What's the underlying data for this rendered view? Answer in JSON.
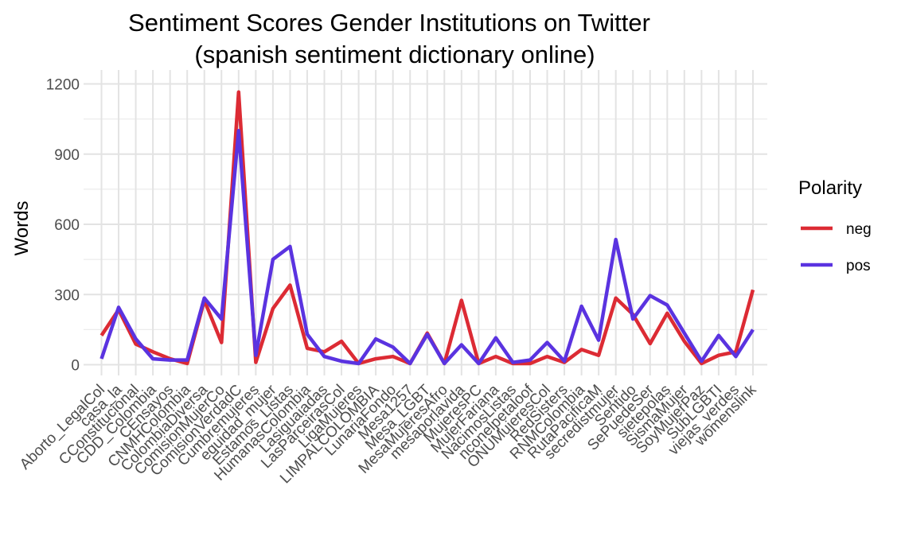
{
  "chart_data": {
    "type": "line",
    "title": "Sentiment Scores Gender Institutions on Twitter",
    "subtitle": "(spanish sentiment dictionary online)",
    "xlabel": "",
    "ylabel": "Words",
    "ylim": [
      0,
      1200
    ],
    "yticks": [
      0,
      300,
      600,
      900,
      1200
    ],
    "grid": true,
    "legend": {
      "title": "Polarity",
      "position": "right"
    },
    "categories": [
      "Aborto_LegalCol",
      "casa_la",
      "CConstitucional",
      "CDD_Colombia",
      "CEnsayos",
      "CNMHColombia",
      "ColombiaDiversa",
      "ComisionMujerCo",
      "ComisionVerdadC",
      "Cumbremujeres",
      "equidad_mujer",
      "Estamos_Listas",
      "HumanasColombia",
      "Lasiguaiadas",
      "LasParceirasCol",
      "LigaMujeres",
      "LIMPALCOLOMBIA",
      "LunariaFondo",
      "Mesa1257",
      "Mesa_LGBT",
      "MesaMujeresAfro",
      "mesaporlavida",
      "MujeresPC",
      "MujerFariana",
      "NacimosListas",
      "nconelpetaloof",
      "ONUMujeresCol",
      "RedSisters",
      "RNMColombia",
      "RutaPacificaM",
      "secredistmujer",
      "Sentido",
      "SePuedeSer",
      "sietepolas",
      "SismaMujer",
      "SoyMujerPaz",
      "SubLGBTI",
      "viejas_verdes",
      "womenslink"
    ],
    "series": [
      {
        "name": "neg",
        "color": "#dc2b34",
        "values": [
          125,
          235,
          88,
          55,
          25,
          5,
          275,
          95,
          1165,
          10,
          240,
          340,
          70,
          55,
          100,
          5,
          25,
          35,
          5,
          135,
          5,
          275,
          5,
          35,
          5,
          5,
          35,
          10,
          65,
          40,
          285,
          215,
          90,
          220,
          100,
          5,
          40,
          55,
          320
        ]
      },
      {
        "name": "pos",
        "color": "#5a33e0",
        "values": [
          25,
          245,
          110,
          25,
          20,
          20,
          285,
          195,
          1000,
          40,
          450,
          505,
          130,
          35,
          15,
          5,
          110,
          75,
          5,
          130,
          5,
          85,
          5,
          115,
          10,
          20,
          95,
          15,
          250,
          105,
          535,
          195,
          295,
          255,
          135,
          15,
          125,
          35,
          150
        ]
      }
    ]
  }
}
